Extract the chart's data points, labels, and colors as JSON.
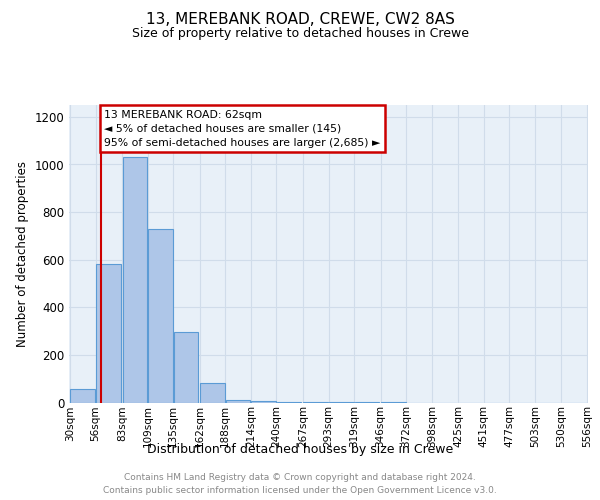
{
  "title": "13, MEREBANK ROAD, CREWE, CW2 8AS",
  "subtitle": "Size of property relative to detached houses in Crewe",
  "xlabel": "Distribution of detached houses by size in Crewe",
  "ylabel": "Number of detached properties",
  "footer_line1": "Contains HM Land Registry data © Crown copyright and database right 2024.",
  "footer_line2": "Contains public sector information licensed under the Open Government Licence v3.0.",
  "annotation_line1": "13 MEREBANK ROAD: 62sqm",
  "annotation_line2": "◄ 5% of detached houses are smaller (145)",
  "annotation_line3": "95% of semi-detached houses are larger (2,685) ►",
  "bin_edges": [
    30,
    56,
    83,
    109,
    135,
    162,
    188,
    214,
    240,
    267,
    293,
    319,
    346,
    372,
    398,
    425,
    451,
    477,
    503,
    530,
    556
  ],
  "bin_counts": [
    57,
    580,
    1030,
    730,
    295,
    80,
    10,
    5,
    3,
    2,
    1,
    1,
    1,
    0,
    0,
    0,
    0,
    0,
    0,
    0
  ],
  "bar_color": "#aec6e8",
  "bar_edge_color": "#5b9bd5",
  "vline_color": "#cc0000",
  "vline_x": 62,
  "annotation_box_color": "#ffffff",
  "annotation_box_edge_color": "#cc0000",
  "grid_color": "#d0dcea",
  "background_color": "#e8f0f8",
  "ylim": [
    0,
    1250
  ],
  "yticks": [
    0,
    200,
    400,
    600,
    800,
    1000,
    1200
  ],
  "tick_labels": [
    "30sqm",
    "56sqm",
    "83sqm",
    "109sqm",
    "135sqm",
    "162sqm",
    "188sqm",
    "214sqm",
    "240sqm",
    "267sqm",
    "293sqm",
    "319sqm",
    "346sqm",
    "372sqm",
    "398sqm",
    "425sqm",
    "451sqm",
    "477sqm",
    "503sqm",
    "530sqm",
    "556sqm"
  ]
}
